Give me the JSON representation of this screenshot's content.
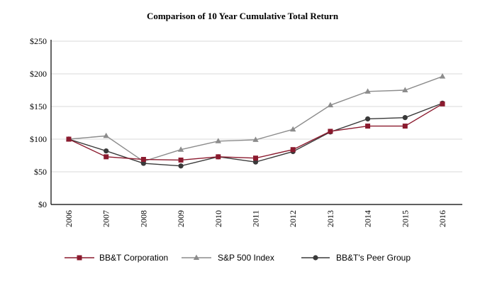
{
  "chart_data": {
    "type": "line",
    "title": "Comparison of 10 Year Cumulative Total Return",
    "xlabel": "",
    "ylabel": "",
    "categories": [
      "2006",
      "2007",
      "2008",
      "2009",
      "2010",
      "2011",
      "2012",
      "2013",
      "2014",
      "2015",
      "2016"
    ],
    "ylim": [
      0,
      250
    ],
    "yticks": [
      0,
      50,
      100,
      150,
      200,
      250
    ],
    "ytick_labels": [
      "$0",
      "$50",
      "$100",
      "$150",
      "$200",
      "$250"
    ],
    "grid": true,
    "legend_position": "bottom",
    "series": [
      {
        "name": "BB&T Corporation",
        "color": "#8b1a2e",
        "marker": "square",
        "values": [
          100,
          73,
          69,
          68,
          73,
          71,
          84,
          112,
          120,
          120,
          154
        ]
      },
      {
        "name": "S&P 500 Index",
        "color": "#8c8c8c",
        "marker": "triangle",
        "values": [
          100,
          105,
          66,
          84,
          97,
          99,
          115,
          152,
          173,
          175,
          196
        ]
      },
      {
        "name": "BB&T's Peer Group",
        "color": "#3a3a3a",
        "marker": "circle",
        "values": [
          100,
          82,
          63,
          59,
          73,
          65,
          81,
          111,
          131,
          133,
          155
        ]
      }
    ]
  }
}
